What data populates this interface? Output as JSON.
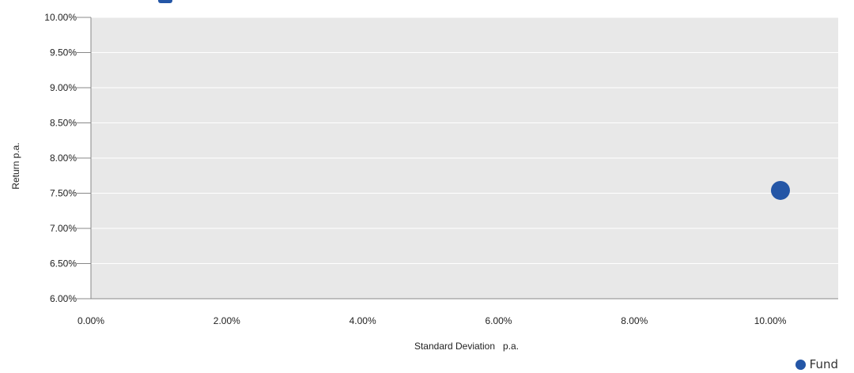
{
  "colors": {
    "series_fund": "#2456a6",
    "plot_background": "#e8e8e8",
    "gridline": "#ffffff",
    "axis": "#888888"
  },
  "chart_data": {
    "type": "scatter",
    "xlabel": "Standard Deviation   p.a.",
    "ylabel": "Return p.a.",
    "xlim": [
      0,
      11.0
    ],
    "ylim": [
      6.0,
      10.0
    ],
    "x_ticks": [
      0,
      2,
      4,
      6,
      8,
      10
    ],
    "x_tick_labels": [
      "0.00%",
      "2.00%",
      "4.00%",
      "6.00%",
      "8.00%",
      "10.00%"
    ],
    "y_ticks": [
      6.0,
      6.5,
      7.0,
      7.5,
      8.0,
      8.5,
      9.0,
      9.5,
      10.0
    ],
    "y_tick_labels": [
      "6.00%",
      "6.50%",
      "7.00%",
      "7.50%",
      "8.00%",
      "8.50%",
      "9.00%",
      "9.50%",
      "10.00%"
    ],
    "grid": true,
    "legend_position": "bottom-right",
    "series": [
      {
        "name": "Fund",
        "color": "#2456a6",
        "points": [
          {
            "x": 10.15,
            "y": 7.54
          }
        ]
      }
    ]
  }
}
